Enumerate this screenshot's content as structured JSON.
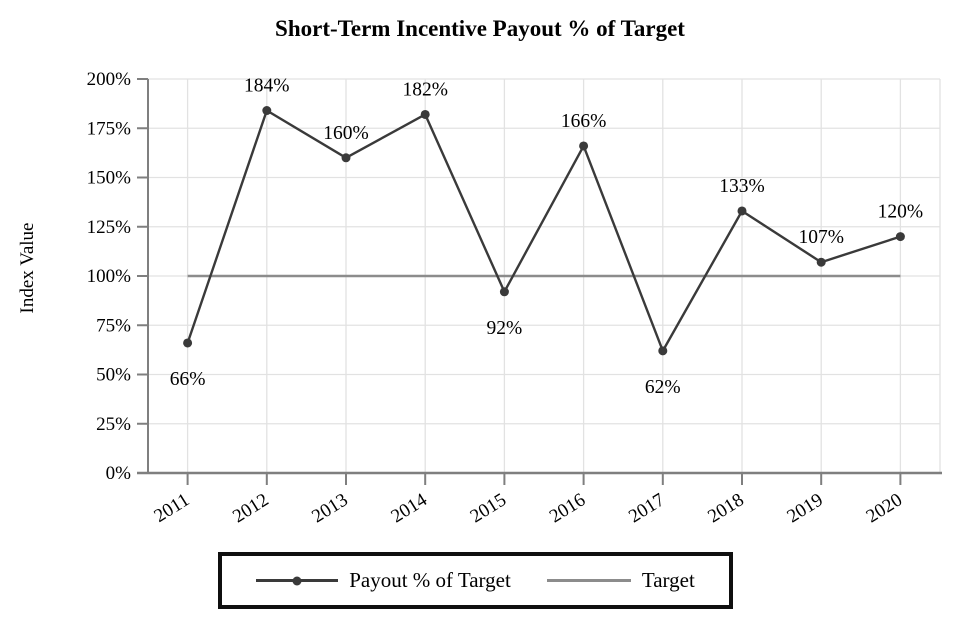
{
  "title": "Short-Term Incentive Payout % of Target",
  "chart_data": {
    "type": "line",
    "title": "Short-Term Incentive Payout % of Target",
    "categories": [
      "2011",
      "2012",
      "2013",
      "2014",
      "2015",
      "2016",
      "2017",
      "2018",
      "2019",
      "2020"
    ],
    "series": [
      {
        "name": "Payout % of Target",
        "values": [
          66,
          184,
          160,
          182,
          92,
          166,
          62,
          133,
          107,
          120
        ],
        "color": "#3a3a3a",
        "marker": "circle"
      },
      {
        "name": "Target",
        "constant_value": 100,
        "color": "#8c8c8c",
        "marker": "none"
      }
    ],
    "data_labels": [
      "66%",
      "184%",
      "160%",
      "182%",
      "92%",
      "166%",
      "62%",
      "133%",
      "107%",
      "120%"
    ],
    "data_label_positions": [
      "below",
      "above",
      "above",
      "above",
      "below",
      "above",
      "below",
      "above",
      "above",
      "above"
    ],
    "xlabel": "",
    "ylabel": "Index Value",
    "ylim": [
      0,
      200
    ],
    "ytick_step": 25,
    "ytick_suffix": "%",
    "grid": "both",
    "legend_position": "bottom"
  },
  "legend": {
    "items": [
      {
        "label": "Payout % of Target",
        "swatch": "line-with-marker",
        "color": "#3a3a3a"
      },
      {
        "label": "Target",
        "swatch": "line",
        "color": "#8c8c8c"
      }
    ]
  },
  "colors": {
    "series": "#3a3a3a",
    "target_line": "#8c8c8c",
    "gridline": "#e2e2e2",
    "axis": "#7f7f7f",
    "text": "#000000",
    "legend_border": "#0f0f0f",
    "background": "#ffffff"
  }
}
